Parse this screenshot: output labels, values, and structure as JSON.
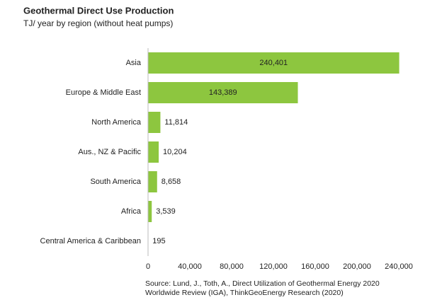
{
  "chart_data": {
    "type": "bar",
    "orientation": "horizontal",
    "title": "Geothermal Direct Use Production",
    "subtitle": "TJ/ year by region (without heat pumps)",
    "categories": [
      "Asia",
      "Europe & Middle East",
      "North America",
      "Aus., NZ & Pacific",
      "South America",
      "Africa",
      "Central America & Caribbean"
    ],
    "values": [
      240401,
      143389,
      11814,
      10204,
      8658,
      3539,
      195
    ],
    "value_labels": [
      "240,401",
      "143,389",
      "11,814",
      "10,204",
      "8,658",
      "3,539",
      "195"
    ],
    "color": "#8dc63f",
    "xlim": [
      0,
      240000
    ],
    "xticks": [
      0,
      {
        "value": 40000,
        "label": "40,000"
      },
      {
        "value": 80000,
        "label": "80,000"
      },
      {
        "value": 120000,
        "label": "120,000"
      },
      {
        "value": 160000,
        "label": "160,000"
      },
      {
        "value": 200000,
        "label": "200,000"
      },
      {
        "value": 240000,
        "label": "240,000"
      }
    ],
    "grid": false,
    "source": [
      "Source: Lund, J., Toth, A., Direct Utilization of Geothermal Energy 2020",
      "Worldwide Review (IGA), ThinkGeoEnergy Research (2020)"
    ]
  }
}
